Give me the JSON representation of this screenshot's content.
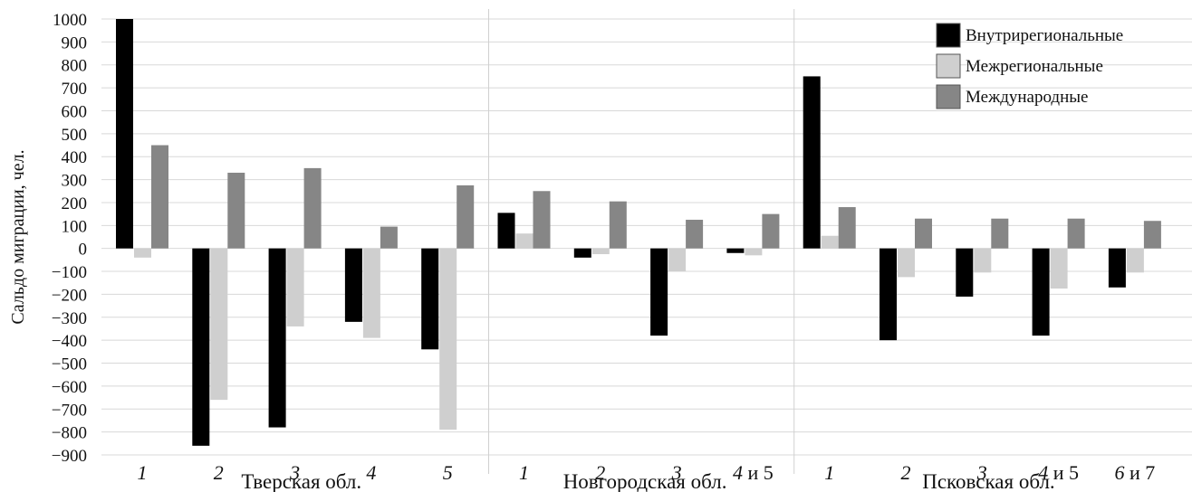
{
  "chart_data": {
    "type": "bar",
    "ylabel": "Сальдо миграции, чел.",
    "xlabel": "",
    "ylim": [
      -900,
      1000
    ],
    "yticks": [
      1000,
      900,
      800,
      700,
      600,
      500,
      400,
      300,
      200,
      100,
      0,
      -100,
      -200,
      -300,
      -400,
      -500,
      -600,
      -700,
      -800,
      -900
    ],
    "grid": true,
    "legend_position": "top-right",
    "groups": [
      {
        "label": "Тверская обл.",
        "categories": [
          {
            "num": "1",
            "conj": ""
          },
          {
            "num": "2",
            "conj": ""
          },
          {
            "num": "3",
            "conj": ""
          },
          {
            "num": "4",
            "conj": ""
          },
          {
            "num": "5",
            "conj": ""
          }
        ]
      },
      {
        "label": "Новгородская обл.",
        "categories": [
          {
            "num": "1",
            "conj": ""
          },
          {
            "num": "2",
            "conj": ""
          },
          {
            "num": "3",
            "conj": ""
          },
          {
            "num": "4",
            "conj": " и 5"
          }
        ]
      },
      {
        "label": "Псковская обл.",
        "categories": [
          {
            "num": "1",
            "conj": ""
          },
          {
            "num": "2",
            "conj": ""
          },
          {
            "num": "3",
            "conj": ""
          },
          {
            "num": "4",
            "conj": " и 5"
          },
          {
            "num": "6",
            "conj": " и 7"
          }
        ]
      }
    ],
    "series": [
      {
        "name": "Внутрирегиональные",
        "color": "#000000",
        "values": [
          1000,
          -860,
          -780,
          -320,
          -440,
          155,
          -40,
          -380,
          -20,
          750,
          -400,
          -210,
          -380,
          -170
        ]
      },
      {
        "name": "Межрегиональные",
        "color": "#cfcfcf",
        "values": [
          -40,
          -660,
          -340,
          -390,
          -790,
          65,
          -25,
          -100,
          -30,
          55,
          -125,
          -105,
          -175,
          -105
        ]
      },
      {
        "name": "Международные",
        "color": "#868686",
        "values": [
          450,
          330,
          350,
          95,
          275,
          250,
          205,
          125,
          150,
          180,
          130,
          130,
          130,
          120
        ]
      }
    ]
  }
}
